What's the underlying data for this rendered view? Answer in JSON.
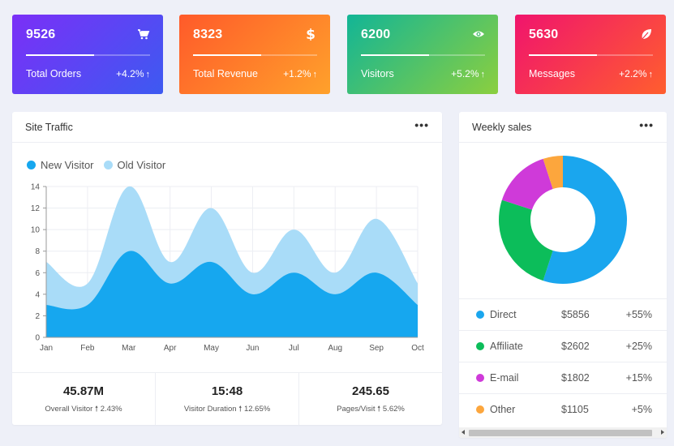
{
  "stat_cards": [
    {
      "value": "9526",
      "label": "Total Orders",
      "change": "+4.2%",
      "icon": "cart-icon",
      "progress": 0.55,
      "gradient": [
        "#7b2ff7",
        "#3d5af1"
      ]
    },
    {
      "value": "8323",
      "label": "Total Revenue",
      "change": "+1.2%",
      "icon": "dollar-icon",
      "progress": 0.55,
      "gradient": [
        "#ff5a2a",
        "#ffa12b"
      ]
    },
    {
      "value": "6200",
      "label": "Visitors",
      "change": "+5.2%",
      "icon": "eye-icon",
      "progress": 0.55,
      "gradient": [
        "#12b596",
        "#8bcf3f"
      ]
    },
    {
      "value": "5630",
      "label": "Messages",
      "change": "+2.2%",
      "icon": "leaf-icon",
      "progress": 0.55,
      "gradient": [
        "#f0146d",
        "#ff5e2e"
      ]
    }
  ],
  "site_traffic": {
    "title": "Site Traffic",
    "more_icon": "more-dots-icon",
    "footer": [
      {
        "value": "45.87M",
        "label": "Overall Visitor",
        "change": "2.43%"
      },
      {
        "value": "15:48",
        "label": "Visitor Duration",
        "change": "12.65%"
      },
      {
        "value": "245.65",
        "label": "Pages/Visit",
        "change": "5.62%"
      }
    ]
  },
  "weekly_sales": {
    "title": "Weekly sales",
    "more_icon": "more-dots-icon",
    "rows": [
      {
        "name": "Direct",
        "amount": "$5856",
        "pct": "+55%",
        "color": "#1aa6ee"
      },
      {
        "name": "Affiliate",
        "amount": "$2602",
        "pct": "+25%",
        "color": "#0cbd5a"
      },
      {
        "name": "E-mail",
        "amount": "$1802",
        "pct": "+15%",
        "color": "#cf3ad9"
      },
      {
        "name": "Other",
        "amount": "$1105",
        "pct": "+5%",
        "color": "#fca63d"
      }
    ]
  },
  "chart_data": [
    {
      "type": "area",
      "categories": [
        "Jan",
        "Feb",
        "Mar",
        "Apr",
        "May",
        "Jun",
        "Jul",
        "Aug",
        "Sep",
        "Oct"
      ],
      "ylim": [
        0,
        14
      ],
      "yticks": [
        0,
        2,
        4,
        6,
        8,
        10,
        12,
        14
      ],
      "grid": true,
      "legend_position": "top-left",
      "series": [
        {
          "name": "New Visitor",
          "values": [
            3,
            3,
            8,
            5,
            7,
            4,
            6,
            4,
            6,
            3
          ],
          "color": "#16a7ef"
        },
        {
          "name": "Old Visitor",
          "values": [
            7,
            5,
            14,
            7,
            12,
            6,
            10,
            6,
            11,
            5
          ],
          "color": "#a9dcf8"
        }
      ]
    },
    {
      "type": "pie",
      "style": "donut",
      "categories": [
        "Direct",
        "Affiliate",
        "E-mail",
        "Other"
      ],
      "values": [
        55,
        25,
        15,
        5
      ],
      "colors": [
        "#1aa6ee",
        "#0cbd5a",
        "#cf3ad9",
        "#fca63d"
      ]
    }
  ]
}
